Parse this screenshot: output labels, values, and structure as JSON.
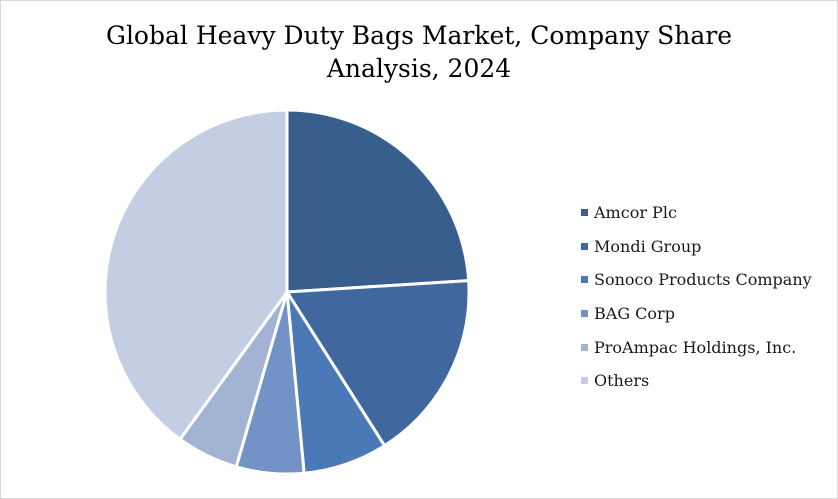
{
  "chart_data": {
    "type": "pie",
    "title_lines": [
      "Global Heavy Duty Bags Market, Company Share",
      "Analysis, 2024"
    ],
    "legend_position": "right",
    "slices": [
      {
        "label": "Amcor Plc",
        "value": 24.0,
        "color": "#375e8c"
      },
      {
        "label": "Mondi Group",
        "value": 17.0,
        "color": "#41689e"
      },
      {
        "label": "Sonoco Products Company",
        "value": 7.5,
        "color": "#4b79b8"
      },
      {
        "label": "BAG Corp",
        "value": 6.0,
        "color": "#7392c6"
      },
      {
        "label": "ProAmpac Holdings, Inc.",
        "value": 5.5,
        "color": "#a2b3d4"
      },
      {
        "label": "Others",
        "value": 40.0,
        "color": "#c3cee2"
      }
    ]
  }
}
